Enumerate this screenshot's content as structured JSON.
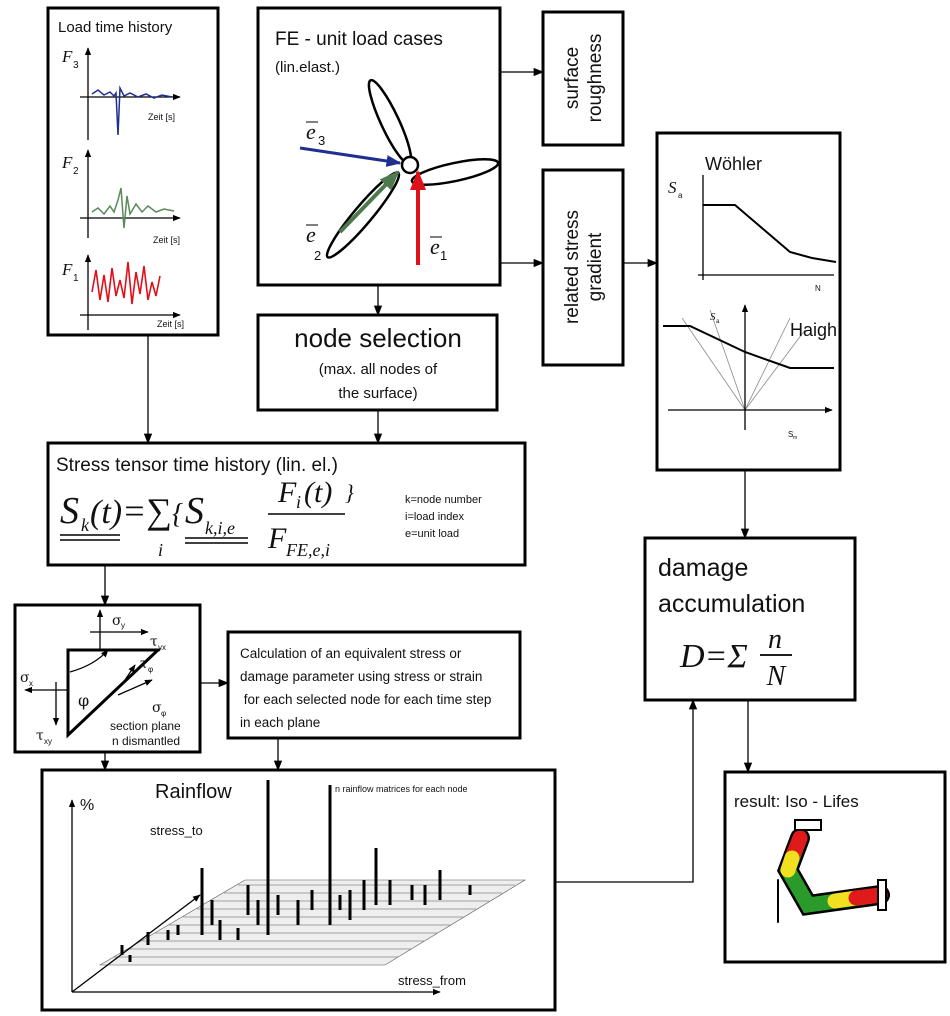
{
  "load_history": {
    "title": "Load time history",
    "plots": [
      {
        "label": "F",
        "sub": "3",
        "axis": "Zeit [s]"
      },
      {
        "label": "F",
        "sub": "2",
        "axis": "Zeit [s]"
      },
      {
        "label": "F",
        "sub": "1",
        "axis": "Zeit [s]"
      }
    ]
  },
  "fe_model": {
    "title": "FE - unit load cases",
    "subtitle": "(lin.elast.)",
    "vectors": [
      {
        "label": "e",
        "sub": "3"
      },
      {
        "label": "e",
        "sub": "2"
      },
      {
        "label": "e",
        "sub": "1"
      }
    ]
  },
  "surface_roughness": {
    "lines": [
      "surface",
      "roughness"
    ]
  },
  "stress_gradient": {
    "lines": [
      "related stress",
      "gradient"
    ]
  },
  "woehler": {
    "title": "Wöhler",
    "y_label": "S",
    "y_sub": "a",
    "x_label": "N"
  },
  "haigh": {
    "title": "Haigh",
    "y_label": "S",
    "y_sub": "a",
    "x_label": "S",
    "x_sub": "m"
  },
  "node_selection": {
    "title": "node selection",
    "lines": [
      "(max. all nodes of",
      "the surface)"
    ]
  },
  "stress_tensor": {
    "title": "Stress tensor time history (lin. el.)",
    "formula": {
      "lhs": "S",
      "lhs_sub": "k",
      "lhs_arg": "(t)",
      "sum": "=∑",
      "sum_index": "i",
      "open": "{",
      "term": "S",
      "term_sub": "k,i,e",
      "num": "F",
      "num_sub": "i",
      "num_arg": "(t)",
      "den": "F",
      "den_sub": "FE,e,i",
      "close": "}"
    },
    "notes": [
      "k=node number",
      "i=load index",
      "e=unit load"
    ]
  },
  "section": {
    "symbols": [
      {
        "label": "σ",
        "sub": "y"
      },
      {
        "label": "τ",
        "sub": "yx"
      },
      {
        "label": "σ",
        "sub": "x"
      },
      {
        "label": "τ",
        "sub": "xy"
      },
      {
        "label": "φ"
      },
      {
        "label": "τ",
        "sub": "φ"
      },
      {
        "label": "σ",
        "sub": "φ"
      }
    ],
    "lines": [
      "section plane",
      "n dismantled"
    ]
  },
  "calculation": {
    "lines": [
      "Calculation of an equivalent stress or",
      "damage parameter  using stress or strain",
      " for each selected node for each time step",
      "in each plane"
    ]
  },
  "damage": {
    "lines": [
      "damage",
      "accumulation"
    ],
    "formula": {
      "lhs": "D=Σ",
      "numerator": "n",
      "denominator": "N"
    }
  },
  "rainflow": {
    "title": "Rainflow",
    "note": "n rainflow matrices for each node",
    "y_label": "%",
    "axis_to": "stress_to",
    "axis_from": "stress_from"
  },
  "result": {
    "title": "result: Iso - Lifes"
  }
}
